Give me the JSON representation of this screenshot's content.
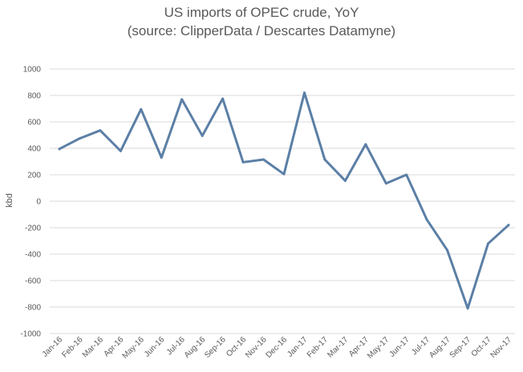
{
  "chart_data": {
    "type": "line",
    "title": "US imports of OPEC crude, YoY",
    "subtitle": "(source: ClipperData / Descartes Datamyne)",
    "xlabel": "",
    "ylabel": "kbd",
    "ylim": [
      -1000,
      1000
    ],
    "yticks": [
      1000,
      800,
      600,
      400,
      200,
      0,
      -200,
      -400,
      -600,
      -800,
      -1000
    ],
    "grid": "horizontal",
    "legend": "none",
    "line_color": "#5b7fa6",
    "categories": [
      "Jan-16",
      "Feb-16",
      "Mar-16",
      "Apr-16",
      "May-16",
      "Jun-16",
      "Jul-16",
      "Aug-16",
      "Sep-16",
      "Oct-16",
      "Nov-16",
      "Dec-16",
      "Jan-17",
      "Feb-17",
      "Mar-17",
      "Apr-17",
      "May-17",
      "Jun-17",
      "Jul-17",
      "Aug-17",
      "Sep-17",
      "Oct-17",
      "Nov-17"
    ],
    "values": [
      395,
      475,
      535,
      380,
      695,
      330,
      770,
      495,
      775,
      295,
      315,
      205,
      820,
      315,
      155,
      430,
      135,
      200,
      -140,
      -370,
      -810,
      -320,
      -180
    ]
  }
}
